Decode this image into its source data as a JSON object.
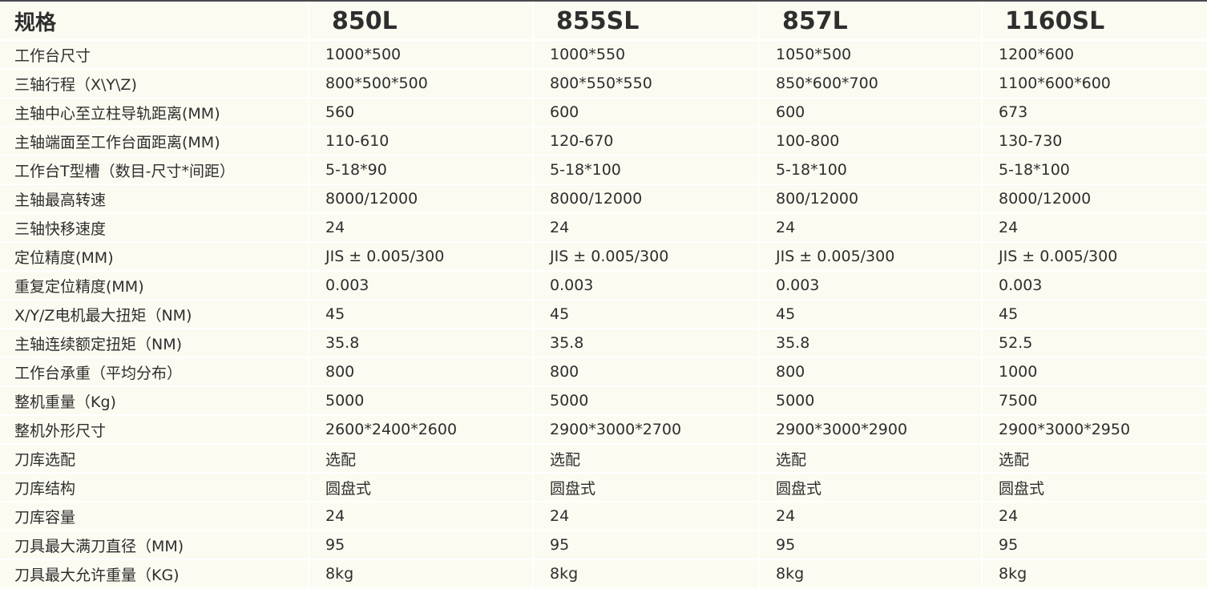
{
  "header": {
    "label": "规格",
    "models": [
      "850L",
      "855SL",
      "857L",
      "1160SL"
    ]
  },
  "colors": {
    "background": "#fcfbf1",
    "text": "#2e2e2e",
    "top_rule": "#4a4a4a"
  },
  "rows": [
    {
      "label": "工作台尺寸",
      "values": [
        "1000*500",
        "1000*550",
        "1050*500",
        "1200*600"
      ]
    },
    {
      "label": "三轴行程（X\\Y\\Z)",
      "values": [
        "800*500*500",
        "800*550*550",
        "850*600*700",
        "1100*600*600"
      ]
    },
    {
      "label": "主轴中心至立柱导轨距离(MM)",
      "values": [
        "560",
        "600",
        "600",
        "673"
      ]
    },
    {
      "label": "主轴端面至工作台面距离(MM)",
      "values": [
        "110-610",
        "120-670",
        "100-800",
        "130-730"
      ]
    },
    {
      "label": "工作台T型槽（数目-尺寸*间距）",
      "values": [
        "5-18*90",
        "5-18*100",
        "5-18*100",
        "5-18*100"
      ]
    },
    {
      "label": "主轴最高转速",
      "values": [
        "8000/12000",
        "8000/12000",
        "800/12000",
        "8000/12000"
      ]
    },
    {
      "label": "三轴快移速度",
      "values": [
        "24",
        "24",
        "24",
        "24"
      ]
    },
    {
      "label": "定位精度(MM)",
      "values": [
        "JIS ± 0.005/300",
        "JIS ± 0.005/300",
        "JIS ± 0.005/300",
        "JIS ± 0.005/300"
      ]
    },
    {
      "label": "重复定位精度(MM)",
      "values": [
        "0.003",
        "0.003",
        "0.003",
        "0.003"
      ]
    },
    {
      "label": "X/Y/Z电机最大扭矩（NM)",
      "values": [
        "45",
        "45",
        "45",
        "45"
      ]
    },
    {
      "label": "主轴连续额定扭矩（NM)",
      "values": [
        "35.8",
        "35.8",
        "35.8",
        "52.5"
      ]
    },
    {
      "label": "工作台承重（平均分布）",
      "values": [
        "800",
        "800",
        "800",
        "1000"
      ]
    },
    {
      "label": "整机重量（Kg)",
      "values": [
        "5000",
        "5000",
        "5000",
        "7500"
      ]
    },
    {
      "label": "整机外形尺寸",
      "values": [
        "2600*2400*2600",
        "2900*3000*2700",
        "2900*3000*2900",
        "2900*3000*2950"
      ]
    },
    {
      "label": "刀库选配",
      "values": [
        "选配",
        "选配",
        "选配",
        "选配"
      ]
    },
    {
      "label": "刀库结构",
      "values": [
        "圆盘式",
        "圆盘式",
        "圆盘式",
        "圆盘式"
      ]
    },
    {
      "label": "刀库容量",
      "values": [
        "24",
        "24",
        "24",
        "24"
      ]
    },
    {
      "label": "刀具最大满刀直径（MM)",
      "values": [
        "95",
        "95",
        "95",
        "95"
      ]
    },
    {
      "label": "刀具最大允许重量（KG)",
      "values": [
        "8kg",
        "8kg",
        "8kg",
        "8kg"
      ]
    }
  ]
}
